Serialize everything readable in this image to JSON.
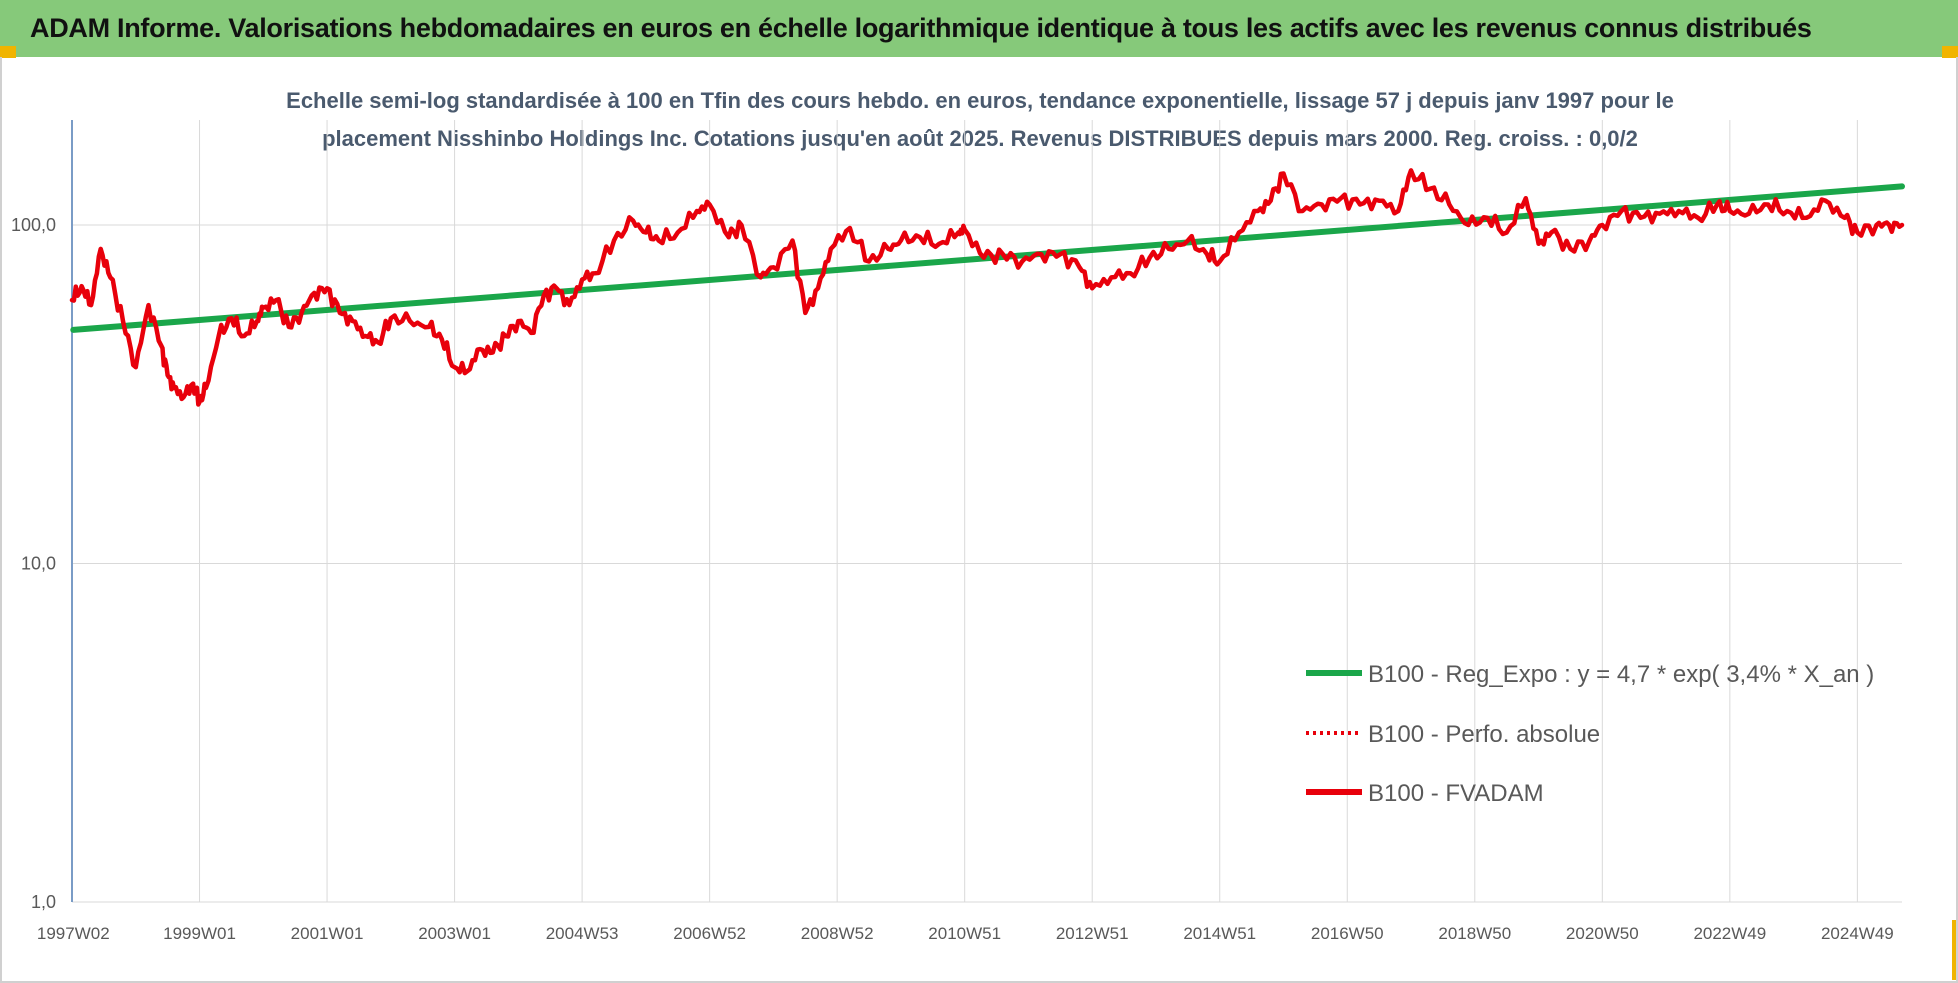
{
  "header": {
    "title": "ADAM Informe. Valorisations hebdomadaires en euros en échelle logarithmique identique à tous les actifs avec les revenus connus distribués"
  },
  "colors": {
    "banner": "#86c97a",
    "accent_corners": "#f0b400",
    "regression_line": "#1aa64a",
    "perf_line": "#e8000b",
    "fvadam_line": "#e8000b",
    "grid": "#d9d9d9",
    "axis_text": "#595959",
    "subtitle_text": "#4a5a6e"
  },
  "chart_data": {
    "type": "line",
    "title": "Echelle semi-log standardisée à 100 en Tfin des cours hebdo. en euros, tendance exponentielle, lissage 57 j depuis janv 1997 pour le placement Nisshinbo Holdings Inc. Cotations jusqu'en août 2025. Revenus DISTRIBUES depuis mars 2000. Reg. croiss. : 0,0/2",
    "title_lines": [
      "Echelle semi-log standardisée à 100 en Tfin des cours hebdo. en euros, tendance exponentielle, lissage 57 j depuis janv 1997 pour le",
      "placement Nisshinbo Holdings Inc.  Cotations jusqu'en août 2025.  Revenus DISTRIBUES depuis mars 2000. Reg. croiss. : 0,0/2"
    ],
    "y_scale": "log",
    "ylim": [
      1,
      200
    ],
    "xlim": [
      1997.0,
      2025.7
    ],
    "grid": true,
    "legend_position": "bottom-right",
    "y_ticks": [
      {
        "value": 1,
        "label": "1,0"
      },
      {
        "value": 10,
        "label": "10,0"
      },
      {
        "value": 100,
        "label": "100,0"
      }
    ],
    "x_ticks": [
      {
        "t": 1997.02,
        "label": "1997W02"
      },
      {
        "t": 1999.0,
        "label": "1999W01"
      },
      {
        "t": 2001.0,
        "label": "2001W01"
      },
      {
        "t": 2003.0,
        "label": "2003W01"
      },
      {
        "t": 2005.0,
        "label": "2004W53"
      },
      {
        "t": 2007.0,
        "label": "2006W52"
      },
      {
        "t": 2009.0,
        "label": "2008W52"
      },
      {
        "t": 2011.0,
        "label": "2010W51"
      },
      {
        "t": 2013.0,
        "label": "2012W51"
      },
      {
        "t": 2015.0,
        "label": "2014W51"
      },
      {
        "t": 2017.0,
        "label": "2016W50"
      },
      {
        "t": 2019.0,
        "label": "2018W50"
      },
      {
        "t": 2021.0,
        "label": "2020W50"
      },
      {
        "t": 2023.0,
        "label": "2022W49"
      },
      {
        "t": 2025.0,
        "label": "2024W49"
      }
    ],
    "series": [
      {
        "name": "B100 - Reg_Expo : y = 4,7 * exp( 3,4% *  X_an )",
        "style": "solid-green",
        "x": [
          1997.02,
          2025.7
        ],
        "y": [
          49,
          130
        ]
      },
      {
        "name": "B100 - Perfo. absolue",
        "style": "dotted-red",
        "x": [],
        "y": []
      },
      {
        "name": "B100 - FVADAM",
        "style": "solid-red",
        "x": [
          1997.0,
          1997.15,
          1997.3,
          1997.45,
          1997.6,
          1997.8,
          1998.0,
          1998.2,
          1998.4,
          1998.5,
          1998.6,
          1998.75,
          1998.9,
          1999.0,
          1999.1,
          1999.3,
          1999.5,
          1999.7,
          1999.9,
          2000.0,
          2000.2,
          2000.4,
          2000.6,
          2000.8,
          2001.0,
          2001.2,
          2001.4,
          2001.6,
          2001.8,
          2002.0,
          2002.3,
          2002.6,
          2002.8,
          2003.0,
          2003.2,
          2003.4,
          2003.6,
          2003.8,
          2004.0,
          2004.2,
          2004.4,
          2004.6,
          2004.8,
          2005.0,
          2005.2,
          2005.5,
          2005.8,
          2006.0,
          2006.2,
          2006.5,
          2006.8,
          2007.0,
          2007.3,
          2007.5,
          2007.8,
          2008.0,
          2008.3,
          2008.5,
          2008.7,
          2008.9,
          2009.2,
          2009.5,
          2009.8,
          2010.0,
          2010.3,
          2010.6,
          2010.9,
          2011.0,
          2011.3,
          2011.6,
          2011.9,
          2012.2,
          2012.5,
          2012.8,
          2013.0,
          2013.3,
          2013.6,
          2013.9,
          2014.2,
          2014.5,
          2014.8,
          2015.0,
          2015.3,
          2015.6,
          2015.8,
          2016.0,
          2016.3,
          2016.6,
          2016.9,
          2017.2,
          2017.5,
          2017.8,
          2018.0,
          2018.3,
          2018.6,
          2018.9,
          2019.2,
          2019.5,
          2019.8,
          2020.0,
          2020.2,
          2020.5,
          2020.8,
          2021.0,
          2021.3,
          2021.6,
          2021.9,
          2022.2,
          2022.5,
          2022.8,
          2023.0,
          2023.3,
          2023.6,
          2023.9,
          2024.2,
          2024.5,
          2024.8,
          2025.0,
          2025.3,
          2025.5,
          2025.7
        ],
        "y": [
          60,
          66,
          58,
          85,
          70,
          52,
          38,
          58,
          44,
          36,
          33,
          31,
          34,
          30,
          33,
          47,
          53,
          47,
          52,
          57,
          60,
          50,
          55,
          63,
          65,
          55,
          52,
          47,
          45,
          53,
          52,
          50,
          46,
          38,
          37,
          43,
          42,
          47,
          52,
          48,
          62,
          65,
          58,
          69,
          72,
          90,
          103,
          95,
          90,
          95,
          110,
          115,
          92,
          100,
          70,
          75,
          90,
          55,
          65,
          85,
          98,
          78,
          85,
          90,
          92,
          88,
          95,
          97,
          80,
          82,
          78,
          82,
          82,
          75,
          65,
          70,
          72,
          80,
          85,
          90,
          82,
          78,
          95,
          110,
          118,
          142,
          110,
          115,
          120,
          115,
          118,
          110,
          145,
          128,
          115,
          100,
          105,
          95,
          120,
          88,
          95,
          85,
          90,
          100,
          110,
          105,
          108,
          110,
          105,
          115,
          110,
          108,
          115,
          110,
          105,
          118,
          105,
          95,
          100,
          100,
          100
        ]
      }
    ]
  }
}
